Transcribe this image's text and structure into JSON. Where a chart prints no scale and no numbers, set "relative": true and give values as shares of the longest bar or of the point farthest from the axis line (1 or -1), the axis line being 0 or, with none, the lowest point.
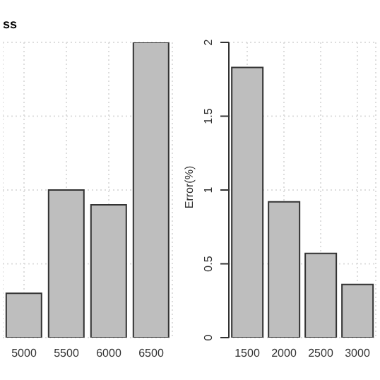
{
  "chart_data": [
    {
      "type": "bar",
      "title": "ss",
      "categories": [
        "5000",
        "5500",
        "6000",
        "6500"
      ],
      "values": [
        0.15,
        0.5,
        0.45,
        1
      ],
      "relative": true,
      "color": "#bebebe",
      "grid": true
    },
    {
      "type": "bar",
      "ylabel": "Error(%)",
      "categories": [
        "1500",
        "2000",
        "2500",
        "3000"
      ],
      "values": [
        1.83,
        0.92,
        0.57,
        0.36
      ],
      "color": "#bebebe",
      "ylim": [
        0,
        2
      ],
      "yticks": [
        0,
        0.5,
        1,
        1.5,
        2
      ],
      "grid": true
    }
  ]
}
